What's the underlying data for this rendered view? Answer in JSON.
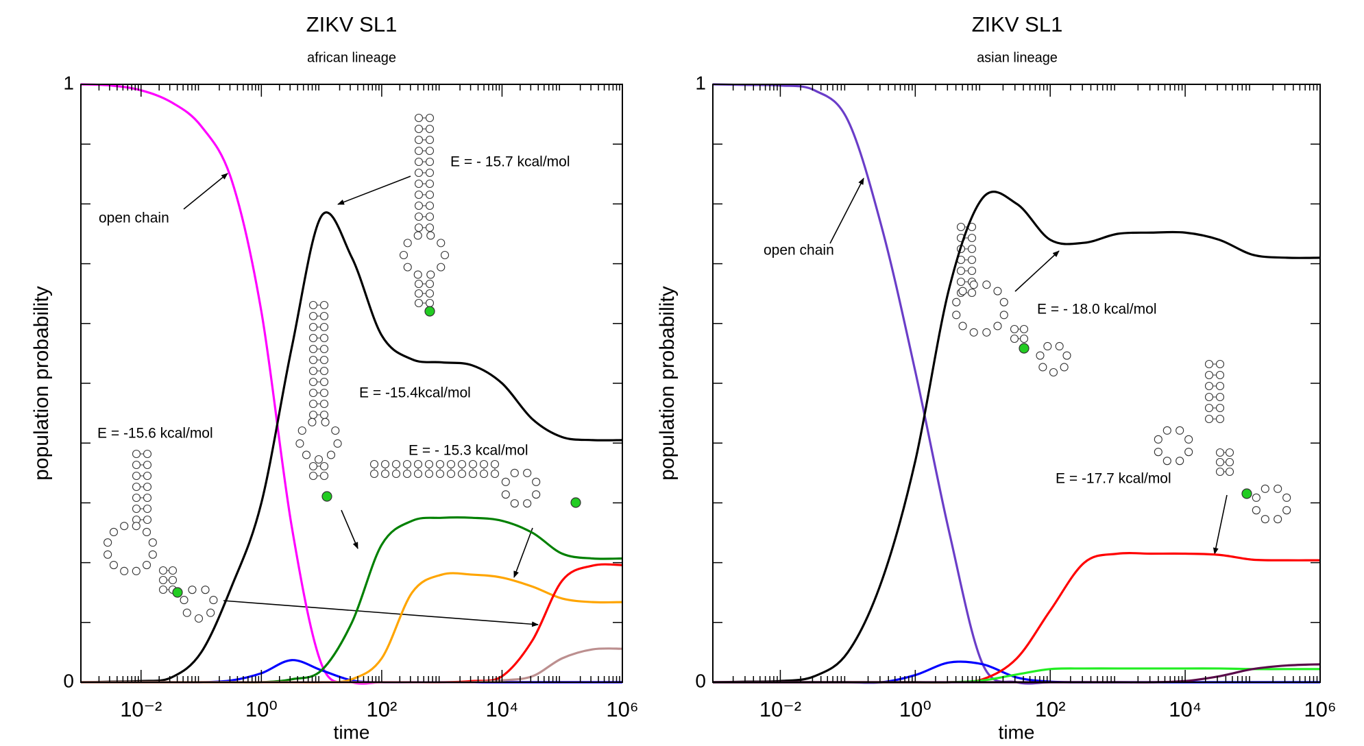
{
  "chart_data": [
    {
      "type": "line",
      "title": "ZIKV SL1",
      "subtitle": "african lineage",
      "xlabel": "time",
      "ylabel": "population probability",
      "xscale": "log",
      "xlim": [
        0.001,
        1000000
      ],
      "ylim": [
        0,
        1
      ],
      "xticks": [
        {
          "value": 0.01,
          "label": "10⁻²"
        },
        {
          "value": 1,
          "label": "10⁰"
        },
        {
          "value": 100,
          "label": "10²"
        },
        {
          "value": 10000,
          "label": "10⁴"
        },
        {
          "value": 1000000,
          "label": "10⁶"
        }
      ],
      "yticks": [
        0,
        1
      ],
      "yminorticks": [
        0.1,
        0.2,
        0.3,
        0.4,
        0.5,
        0.6,
        0.7,
        0.8,
        0.9
      ],
      "annotations": [
        "open chain",
        "E = - 15.7 kcal/mol",
        "E = -15.4kcal/mol",
        "E = -15.6 kcal/mol",
        "E = - 15.3 kcal/mol"
      ],
      "x": [
        0.001,
        0.0032,
        0.01,
        0.032,
        0.1,
        0.32,
        1,
        3.2,
        10,
        32,
        100,
        320,
        1000,
        3200,
        10000,
        32000,
        100000,
        320000,
        1000000
      ],
      "series": [
        {
          "color": "#ff00ff",
          "values": [
            1,
            0.998,
            0.99,
            0.97,
            0.93,
            0.84,
            0.62,
            0.26,
            0.03,
            0,
            0,
            0,
            0,
            0,
            0,
            0,
            0,
            0,
            0
          ]
        },
        {
          "color": "#000000",
          "values": [
            0,
            0.001,
            0.002,
            0.008,
            0.05,
            0.16,
            0.3,
            0.56,
            0.78,
            0.71,
            0.58,
            0.54,
            0.535,
            0.53,
            0.5,
            0.44,
            0.41,
            0.405,
            0.405
          ]
        },
        {
          "color": "#0000ff",
          "values": [
            0,
            0,
            0,
            0,
            0,
            0.003,
            0.015,
            0.037,
            0.02,
            0.003,
            0,
            0,
            0,
            0,
            0,
            0,
            0,
            0,
            0
          ]
        },
        {
          "color": "#008000",
          "values": [
            0,
            0,
            0,
            0,
            0,
            0,
            0,
            0.005,
            0.02,
            0.1,
            0.23,
            0.27,
            0.275,
            0.275,
            0.27,
            0.25,
            0.215,
            0.207,
            0.207
          ]
        },
        {
          "color": "#ffa500",
          "values": [
            0,
            0,
            0,
            0,
            0,
            0,
            0,
            0,
            0,
            0.005,
            0.04,
            0.15,
            0.18,
            0.18,
            0.175,
            0.16,
            0.14,
            0.134,
            0.134
          ]
        },
        {
          "color": "#ff0000",
          "values": [
            0,
            0,
            0,
            0,
            0,
            0,
            0,
            0,
            0,
            0,
            0,
            0,
            0,
            0.002,
            0.01,
            0.07,
            0.17,
            0.195,
            0.196
          ]
        },
        {
          "color": "#bc8f8f",
          "values": [
            0,
            0,
            0,
            0,
            0,
            0,
            0,
            0,
            0,
            0,
            0,
            0,
            0,
            0,
            0.003,
            0.01,
            0.04,
            0.055,
            0.056
          ]
        }
      ]
    },
    {
      "type": "line",
      "title": "ZIKV SL1",
      "subtitle": "asian lineage",
      "xlabel": "time",
      "ylabel": "population probability",
      "xscale": "log",
      "xlim": [
        0.001,
        1000000
      ],
      "ylim": [
        0,
        1
      ],
      "xticks": [
        {
          "value": 0.01,
          "label": "10⁻²"
        },
        {
          "value": 1,
          "label": "10⁰"
        },
        {
          "value": 100,
          "label": "10²"
        },
        {
          "value": 10000,
          "label": "10⁴"
        },
        {
          "value": 1000000,
          "label": "10⁶"
        }
      ],
      "yticks": [
        0,
        1
      ],
      "yminorticks": [
        0.1,
        0.2,
        0.3,
        0.4,
        0.5,
        0.6,
        0.7,
        0.8,
        0.9
      ],
      "annotations": [
        "open chain",
        "E = - 18.0 kcal/mol",
        "E = -17.7 kcal/mol"
      ],
      "x": [
        0.001,
        0.0032,
        0.01,
        0.032,
        0.1,
        0.32,
        1,
        3.2,
        10,
        32,
        100,
        320,
        1000,
        3200,
        10000,
        32000,
        100000,
        320000,
        1000000
      ],
      "series": [
        {
          "color": "#6a3dc8",
          "values": [
            1,
            0.999,
            0.998,
            0.99,
            0.94,
            0.76,
            0.52,
            0.25,
            0.03,
            0,
            0,
            0,
            0,
            0,
            0,
            0,
            0,
            0,
            0
          ]
        },
        {
          "color": "#000000",
          "values": [
            0,
            0.001,
            0.002,
            0.01,
            0.05,
            0.17,
            0.37,
            0.66,
            0.81,
            0.8,
            0.74,
            0.735,
            0.75,
            0.752,
            0.752,
            0.74,
            0.715,
            0.71,
            0.71
          ]
        },
        {
          "color": "#0000ff",
          "values": [
            0,
            0,
            0,
            0,
            0,
            0,
            0.012,
            0.033,
            0.03,
            0.008,
            0.001,
            0,
            0,
            0,
            0,
            0,
            0,
            0,
            0
          ]
        },
        {
          "color": "#ff0000",
          "values": [
            0,
            0,
            0,
            0,
            0,
            0,
            0,
            0,
            0.005,
            0.04,
            0.12,
            0.2,
            0.215,
            0.215,
            0.215,
            0.213,
            0.205,
            0.204,
            0.204
          ]
        },
        {
          "color": "#22ee22",
          "values": [
            0,
            0,
            0,
            0,
            0,
            0,
            0,
            0,
            0.003,
            0.013,
            0.022,
            0.023,
            0.023,
            0.023,
            0.023,
            0.023,
            0.022,
            0.022,
            0.022
          ]
        },
        {
          "color": "#5a0a4a",
          "values": [
            0,
            0,
            0,
            0,
            0,
            0,
            0,
            0,
            0,
            0,
            0,
            0,
            0,
            0,
            0.002,
            0.01,
            0.022,
            0.028,
            0.03
          ]
        }
      ]
    }
  ]
}
